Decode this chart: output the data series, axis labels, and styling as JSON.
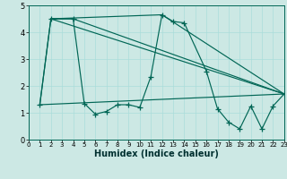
{
  "xlabel": "Humidex (Indice chaleur)",
  "bg_color": "#cce8e4",
  "line_color": "#006655",
  "marker_color": "#006655",
  "xlim": [
    0,
    23
  ],
  "ylim": [
    0,
    5
  ],
  "yticks": [
    0,
    1,
    2,
    3,
    4,
    5
  ],
  "xticks": [
    0,
    1,
    2,
    3,
    4,
    5,
    6,
    7,
    8,
    9,
    10,
    11,
    12,
    13,
    14,
    15,
    16,
    17,
    18,
    19,
    20,
    21,
    22,
    23
  ],
  "main_line": {
    "x": [
      1,
      2,
      4,
      5,
      6,
      7,
      8,
      9,
      10,
      11,
      12,
      13,
      14,
      16,
      17,
      18,
      19,
      20,
      21,
      22,
      23
    ],
    "y": [
      1.3,
      4.5,
      4.5,
      1.35,
      0.95,
      1.05,
      1.3,
      1.3,
      1.2,
      2.35,
      4.65,
      4.4,
      4.35,
      2.55,
      1.15,
      0.65,
      0.4,
      1.25,
      0.4,
      1.25,
      1.7
    ]
  },
  "diag_lines": [
    {
      "x": [
        1,
        23
      ],
      "y": [
        1.3,
        1.7
      ]
    },
    {
      "x": [
        2,
        4,
        23
      ],
      "y": [
        4.5,
        4.5,
        1.7
      ]
    },
    {
      "x": [
        1,
        2,
        23
      ],
      "y": [
        1.3,
        4.5,
        1.7
      ]
    },
    {
      "x": [
        2,
        12,
        23
      ],
      "y": [
        4.5,
        4.65,
        1.7
      ]
    }
  ],
  "grid_color": "#aaddda",
  "xlabel_fontsize": 7,
  "tick_fontsize": 5
}
